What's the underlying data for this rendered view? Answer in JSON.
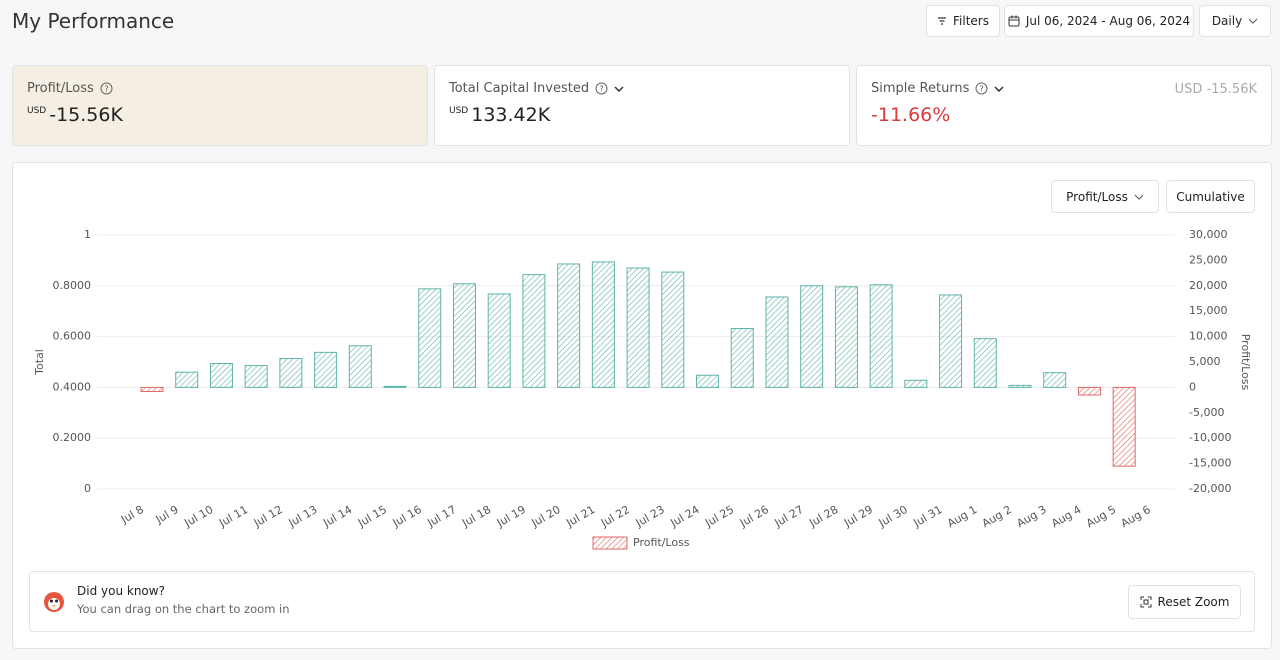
{
  "header": {
    "title": "My Performance",
    "filters": "Filters",
    "date_range": "Jul 06, 2024 - Aug 06, 2024",
    "interval": "Daily"
  },
  "cards": [
    {
      "label": "Profit/Loss",
      "currency": "USD",
      "value": "-15.56K"
    },
    {
      "label": "Total Capital Invested",
      "currency": "USD",
      "value": "133.42K"
    },
    {
      "label": "Simple Returns",
      "value": "-11.66%",
      "aside": "USD -15.56K"
    }
  ],
  "controls": {
    "metric": "Profit/Loss",
    "mode": "Cumulative"
  },
  "tip": {
    "title": "Did you know?",
    "text": "You can drag on the chart to zoom in",
    "button": "Reset Zoom"
  },
  "chart_data": {
    "type": "bar",
    "categories": [
      "Jul 8",
      "Jul 9",
      "Jul 10",
      "Jul 11",
      "Jul 12",
      "Jul 13",
      "Jul 14",
      "Jul 15",
      "Jul 16",
      "Jul 17",
      "Jul 18",
      "Jul 19",
      "Jul 20",
      "Jul 21",
      "Jul 22",
      "Jul 23",
      "Jul 24",
      "Jul 25",
      "Jul 26",
      "Jul 27",
      "Jul 28",
      "Jul 29",
      "Jul 30",
      "Jul 31",
      "Aug 1",
      "Aug 2",
      "Aug 3",
      "Aug 4",
      "Aug 5",
      "Aug 6"
    ],
    "series": [
      {
        "name": "Profit/Loss",
        "axis": "y2",
        "color": "#5fb3a8",
        "negative_color": "#e06666",
        "values": [
          -800,
          3000,
          4700,
          4300,
          5700,
          6900,
          8200,
          200,
          19400,
          20400,
          18400,
          22200,
          24300,
          24700,
          23500,
          22700,
          2400,
          11600,
          17800,
          20000,
          19800,
          20200,
          1400,
          18200,
          9600,
          400,
          2900,
          -1500,
          -15500,
          null
        ]
      }
    ],
    "y_label": "Total",
    "y2_label": "Profit/Loss",
    "ylim": [
      0,
      1
    ],
    "yticks": [
      0,
      {
        "value": 0.2,
        "label": "0.2000"
      },
      {
        "value": 0.4,
        "label": "0.4000"
      },
      {
        "value": 0.6,
        "label": "0.6000"
      },
      {
        "value": 0.8,
        "label": "0.8000"
      },
      1
    ],
    "y2lim": [
      -20000,
      30000
    ],
    "y2ticks": [
      {
        "value": -20000,
        "label": "-20,000"
      },
      {
        "value": -15000,
        "label": "-15,000"
      },
      {
        "value": -10000,
        "label": "-10,000"
      },
      {
        "value": -5000,
        "label": "-5,000"
      },
      0,
      {
        "value": 5000,
        "label": "5,000"
      },
      {
        "value": 10000,
        "label": "10,000"
      },
      {
        "value": 15000,
        "label": "15,000"
      },
      {
        "value": 20000,
        "label": "20,000"
      },
      {
        "value": 25000,
        "label": "25,000"
      },
      {
        "value": 30000,
        "label": "30,000"
      }
    ],
    "grid": true,
    "legend": "bottom"
  }
}
